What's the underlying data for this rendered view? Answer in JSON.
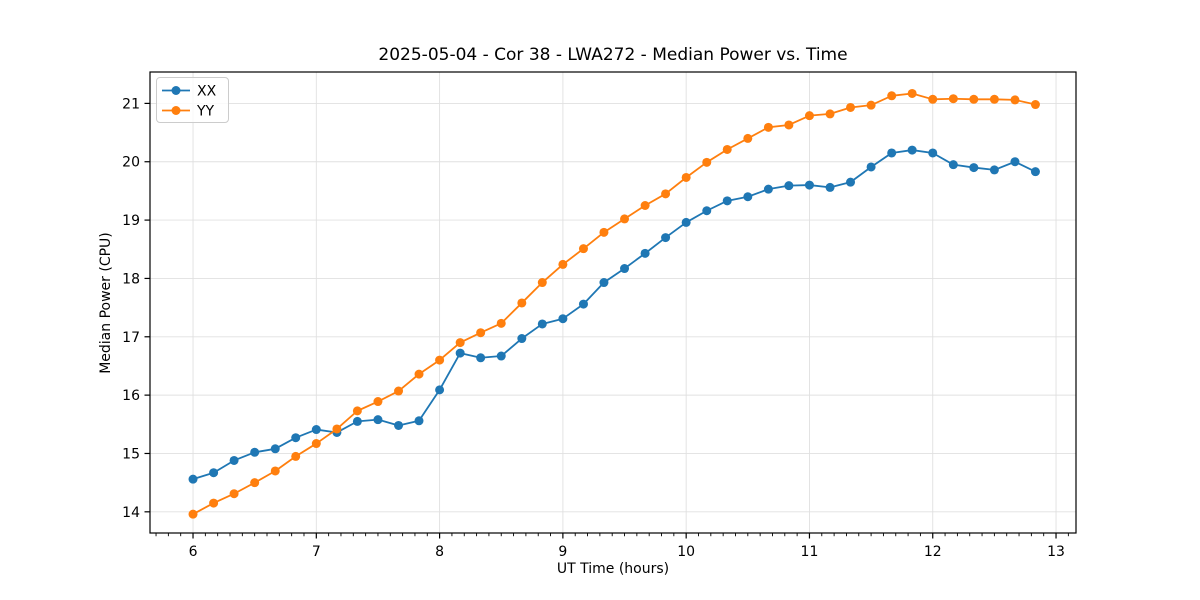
{
  "figure": {
    "background": "#ffffff",
    "spine_color": "#000000",
    "grid_color": "#e0e0e0"
  },
  "chart_data": {
    "type": "line",
    "title": "2025-05-04 - Cor 38 - LWA272 - Median Power vs. Time",
    "xlabel": "UT Time (hours)",
    "ylabel": "Median Power (CPU)",
    "grid": true,
    "legend_position": "upper left",
    "marker": "circle",
    "xlim": [
      5.651,
      13.162
    ],
    "ylim": [
      13.637,
      21.538
    ],
    "xticks": [
      6,
      7,
      8,
      9,
      10,
      11,
      12,
      13
    ],
    "yticks": [
      14,
      15,
      16,
      17,
      18,
      19,
      20,
      21
    ],
    "x_minor_tick_step": 0.1,
    "x": [
      6.0,
      6.167,
      6.333,
      6.5,
      6.667,
      6.833,
      7.0,
      7.167,
      7.333,
      7.5,
      7.667,
      7.833,
      8.0,
      8.167,
      8.333,
      8.5,
      8.667,
      8.833,
      9.0,
      9.167,
      9.333,
      9.5,
      9.667,
      9.833,
      10.0,
      10.167,
      10.333,
      10.5,
      10.667,
      10.833,
      11.0,
      11.167,
      11.333,
      11.5,
      11.667,
      11.833,
      12.0,
      12.167,
      12.333,
      12.5,
      12.667,
      12.833
    ],
    "series": [
      {
        "name": "XX",
        "color": "#1f77b4",
        "values": [
          14.56,
          14.67,
          14.88,
          15.02,
          15.08,
          15.27,
          15.41,
          15.36,
          15.55,
          15.58,
          15.48,
          15.56,
          16.09,
          16.72,
          16.64,
          16.67,
          16.97,
          17.22,
          17.31,
          17.56,
          17.93,
          18.17,
          18.43,
          18.7,
          18.96,
          19.16,
          19.33,
          19.4,
          19.53,
          19.59,
          19.6,
          19.56,
          19.65,
          19.91,
          20.15,
          20.2,
          20.15,
          19.95,
          19.9,
          19.86,
          20.0,
          19.83
        ]
      },
      {
        "name": "YY",
        "color": "#ff7f0e",
        "values": [
          13.96,
          14.15,
          14.31,
          14.5,
          14.7,
          14.95,
          15.17,
          15.42,
          15.73,
          15.89,
          16.07,
          16.36,
          16.6,
          16.9,
          17.07,
          17.23,
          17.58,
          17.93,
          18.24,
          18.51,
          18.79,
          19.02,
          19.25,
          19.45,
          19.73,
          19.99,
          20.21,
          20.4,
          20.59,
          20.63,
          20.79,
          20.82,
          20.93,
          20.97,
          21.13,
          21.17,
          21.07,
          21.08,
          21.07,
          21.07,
          21.06,
          20.98
        ]
      }
    ]
  }
}
